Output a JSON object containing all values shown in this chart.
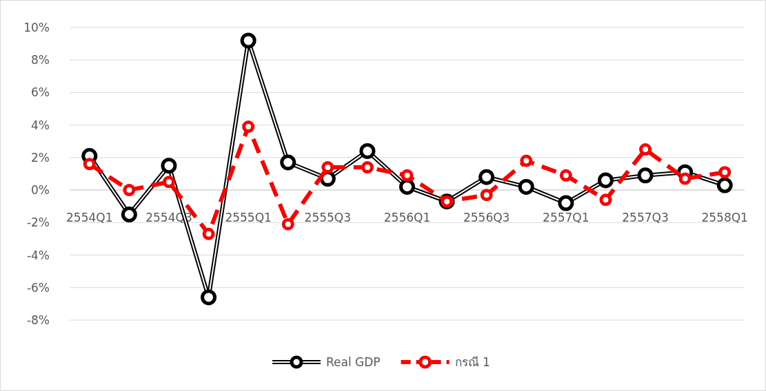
{
  "chart_data": {
    "type": "line",
    "categories": [
      "2554Q1",
      null,
      "2554Q3",
      null,
      "2555Q1",
      null,
      "2555Q3",
      null,
      "2556Q1",
      null,
      "2556Q3",
      null,
      "2557Q1",
      null,
      "2557Q3",
      null,
      "2558Q1"
    ],
    "series": [
      {
        "name": "Real GDP",
        "color": "#000000",
        "line_style": "solid",
        "values": [
          2.1,
          -1.5,
          1.5,
          -6.6,
          9.2,
          1.7,
          0.7,
          2.4,
          0.2,
          -0.7,
          0.8,
          0.2,
          -0.8,
          0.6,
          0.9,
          1.1,
          0.3
        ]
      },
      {
        "name": "กรณี 1",
        "color": "#ff0000",
        "line_style": "dashed",
        "values": [
          1.6,
          0,
          0.5,
          -2.7,
          3.9,
          -2.1,
          1.4,
          1.4,
          0.9,
          -0.7,
          -0.3,
          1.8,
          0.9,
          -0.6,
          2.5,
          0.7,
          1.1
        ]
      }
    ],
    "ylim": [
      -8,
      10
    ],
    "yticks": [
      {
        "value": -8,
        "label": "-8%"
      },
      {
        "value": -6,
        "label": "-6%"
      },
      {
        "value": -4,
        "label": "-4%"
      },
      {
        "value": -2,
        "label": "-2%"
      },
      {
        "value": 0,
        "label": "0%"
      },
      {
        "value": 2,
        "label": "2%"
      },
      {
        "value": 4,
        "label": "4%"
      },
      {
        "value": 6,
        "label": "6%"
      },
      {
        "value": 8,
        "label": "8%"
      },
      {
        "value": 10,
        "label": "10%"
      }
    ],
    "grid": "y",
    "legend": "bottom",
    "marker": "circle"
  }
}
